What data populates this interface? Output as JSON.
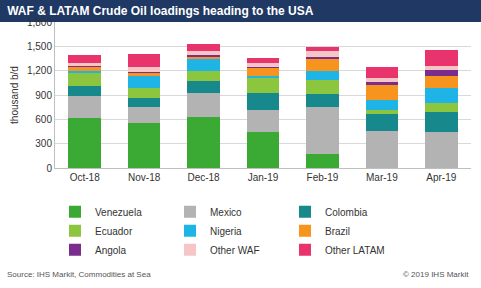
{
  "chart_data": {
    "type": "bar",
    "stacked": true,
    "title": "WAF & LATAM Crude Oil loadings heading to the USA",
    "y_label": "thousand b/d",
    "source": "Source: IHS Markit, Commodities at Sea",
    "copyright": "© 2019 IHS Markit",
    "categories": [
      "Oct-18",
      "Nov-18",
      "Dec-18",
      "Jan-19",
      "Feb-19",
      "Mar-19",
      "Apr-19"
    ],
    "series": [
      {
        "name": "Venezuela",
        "color": "#3aaa35",
        "values": [
          620,
          550,
          630,
          450,
          170,
          0,
          0
        ]
      },
      {
        "name": "Mexico",
        "color": "#b3b3b3",
        "values": [
          270,
          200,
          300,
          260,
          580,
          460,
          440
        ]
      },
      {
        "name": "Colombia",
        "color": "#17898c",
        "values": [
          120,
          110,
          140,
          220,
          160,
          200,
          250
        ]
      },
      {
        "name": "Ecuador",
        "color": "#8cc63f",
        "values": [
          160,
          130,
          120,
          180,
          170,
          50,
          110
        ]
      },
      {
        "name": "Nigeria",
        "color": "#1eb4e6",
        "values": [
          30,
          140,
          150,
          30,
          110,
          130,
          190
        ]
      },
      {
        "name": "Brazil",
        "color": "#f7941d",
        "values": [
          50,
          40,
          30,
          90,
          160,
          180,
          140
        ]
      },
      {
        "name": "Angola",
        "color": "#7b2d8e",
        "values": [
          10,
          10,
          20,
          20,
          20,
          40,
          80
        ]
      },
      {
        "name": "Other WAF",
        "color": "#f6c6c6",
        "values": [
          40,
          60,
          50,
          50,
          70,
          50,
          50
        ]
      },
      {
        "name": "Other LATAM",
        "color": "#e8336d",
        "values": [
          90,
          170,
          90,
          60,
          50,
          140,
          190
        ]
      }
    ],
    "ylim": [
      0,
      1800
    ],
    "yticks": [
      0,
      300,
      600,
      900,
      {
        "value": 1200,
        "label": "1,200"
      },
      {
        "value": 1500,
        "label": "1,500"
      },
      {
        "value": 1800,
        "label": "1,800"
      }
    ],
    "grid": true,
    "legend": "bottom"
  }
}
